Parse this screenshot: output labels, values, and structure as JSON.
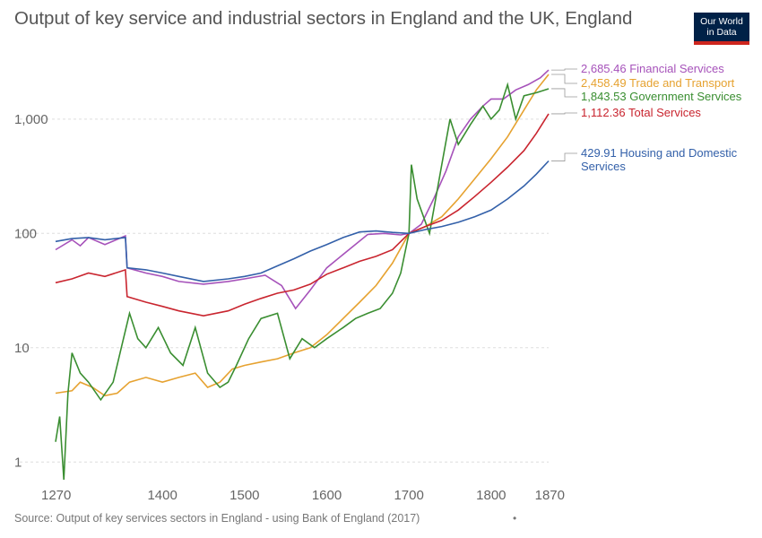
{
  "title": "Output of key service and industrial sectors in England and the UK, England",
  "logo": {
    "line1": "Our World",
    "line2": "in Data",
    "bg": "#002147",
    "accent": "#ce261e"
  },
  "source": "Source: Output of key services sectors in England - using Bank of England (2017)",
  "footer_dot": "•",
  "chart_data": {
    "type": "line",
    "title": "Output of key service and industrial sectors in England and the UK, England",
    "xlabel": "",
    "ylabel": "",
    "yscale": "log",
    "xlim": [
      1270,
      1870
    ],
    "ylim": [
      0.7,
      3000
    ],
    "x_ticks": [
      {
        "value": 1270,
        "label": "1270"
      },
      {
        "value": 1400,
        "label": "1400"
      },
      {
        "value": 1500,
        "label": "1500"
      },
      {
        "value": 1600,
        "label": "1600"
      },
      {
        "value": 1700,
        "label": "1700"
      },
      {
        "value": 1800,
        "label": "1800"
      },
      {
        "value": 1870,
        "label": "1870"
      }
    ],
    "y_ticks": [
      {
        "value": 1,
        "label": "1"
      },
      {
        "value": 10,
        "label": "10"
      },
      {
        "value": 100,
        "label": "100"
      },
      {
        "value": 1000,
        "label": "1,000"
      }
    ],
    "grid": "horizontal-dashed",
    "series": [
      {
        "name": "Financial Services",
        "color": "#a652ba",
        "end_value": 2685.46,
        "end_label": "2,685.46",
        "points": [
          [
            1270,
            72
          ],
          [
            1290,
            88
          ],
          [
            1300,
            78
          ],
          [
            1310,
            92
          ],
          [
            1330,
            80
          ],
          [
            1355,
            95
          ],
          [
            1357,
            50
          ],
          [
            1380,
            45
          ],
          [
            1400,
            42
          ],
          [
            1420,
            38
          ],
          [
            1450,
            36
          ],
          [
            1480,
            38
          ],
          [
            1500,
            40
          ],
          [
            1525,
            43
          ],
          [
            1545,
            35
          ],
          [
            1562,
            22
          ],
          [
            1580,
            32
          ],
          [
            1600,
            50
          ],
          [
            1630,
            75
          ],
          [
            1650,
            98
          ],
          [
            1670,
            100
          ],
          [
            1690,
            97
          ],
          [
            1700,
            100
          ],
          [
            1715,
            120
          ],
          [
            1730,
            200
          ],
          [
            1745,
            350
          ],
          [
            1760,
            700
          ],
          [
            1775,
            1000
          ],
          [
            1790,
            1300
          ],
          [
            1800,
            1500
          ],
          [
            1815,
            1500
          ],
          [
            1830,
            1800
          ],
          [
            1845,
            2000
          ],
          [
            1860,
            2300
          ],
          [
            1870,
            2685
          ]
        ]
      },
      {
        "name": "Trade and Transport",
        "color": "#e6a230",
        "end_value": 2458.49,
        "end_label": "2,458.49",
        "points": [
          [
            1270,
            4
          ],
          [
            1290,
            4.2
          ],
          [
            1300,
            5
          ],
          [
            1315,
            4.5
          ],
          [
            1330,
            3.8
          ],
          [
            1345,
            4
          ],
          [
            1360,
            5
          ],
          [
            1380,
            5.5
          ],
          [
            1400,
            5
          ],
          [
            1420,
            5.5
          ],
          [
            1440,
            6
          ],
          [
            1455,
            4.5
          ],
          [
            1470,
            5
          ],
          [
            1485,
            6.5
          ],
          [
            1500,
            7
          ],
          [
            1520,
            7.5
          ],
          [
            1540,
            8
          ],
          [
            1560,
            9
          ],
          [
            1580,
            10
          ],
          [
            1600,
            13
          ],
          [
            1620,
            18
          ],
          [
            1640,
            25
          ],
          [
            1660,
            35
          ],
          [
            1680,
            55
          ],
          [
            1700,
            100
          ],
          [
            1720,
            115
          ],
          [
            1740,
            140
          ],
          [
            1760,
            200
          ],
          [
            1780,
            300
          ],
          [
            1800,
            450
          ],
          [
            1820,
            700
          ],
          [
            1840,
            1200
          ],
          [
            1855,
            1800
          ],
          [
            1870,
            2458
          ]
        ]
      },
      {
        "name": "Government Services",
        "color": "#3a8e31",
        "end_value": 1843.53,
        "end_label": "1,843.53",
        "points": [
          [
            1270,
            1.5
          ],
          [
            1275,
            2.5
          ],
          [
            1280,
            0.7
          ],
          [
            1285,
            4
          ],
          [
            1290,
            9
          ],
          [
            1300,
            6
          ],
          [
            1310,
            5
          ],
          [
            1325,
            3.5
          ],
          [
            1340,
            5
          ],
          [
            1350,
            10
          ],
          [
            1360,
            20
          ],
          [
            1370,
            12
          ],
          [
            1380,
            10
          ],
          [
            1395,
            15
          ],
          [
            1410,
            9
          ],
          [
            1425,
            7
          ],
          [
            1440,
            15
          ],
          [
            1455,
            6
          ],
          [
            1470,
            4.5
          ],
          [
            1480,
            5
          ],
          [
            1490,
            7
          ],
          [
            1505,
            12
          ],
          [
            1520,
            18
          ],
          [
            1540,
            20
          ],
          [
            1555,
            8
          ],
          [
            1570,
            12
          ],
          [
            1585,
            10
          ],
          [
            1600,
            12
          ],
          [
            1620,
            15
          ],
          [
            1635,
            18
          ],
          [
            1650,
            20
          ],
          [
            1665,
            22
          ],
          [
            1680,
            30
          ],
          [
            1690,
            45
          ],
          [
            1700,
            100
          ],
          [
            1703,
            400
          ],
          [
            1710,
            200
          ],
          [
            1725,
            100
          ],
          [
            1740,
            400
          ],
          [
            1750,
            1000
          ],
          [
            1760,
            600
          ],
          [
            1775,
            900
          ],
          [
            1790,
            1300
          ],
          [
            1800,
            1000
          ],
          [
            1810,
            1200
          ],
          [
            1820,
            2000
          ],
          [
            1830,
            1000
          ],
          [
            1840,
            1600
          ],
          [
            1855,
            1700
          ],
          [
            1870,
            1843
          ]
        ]
      },
      {
        "name": "Total Services",
        "color": "#c9252f",
        "end_value": 1112.36,
        "end_label": "1,112.36",
        "points": [
          [
            1270,
            37
          ],
          [
            1290,
            40
          ],
          [
            1310,
            45
          ],
          [
            1330,
            42
          ],
          [
            1355,
            48
          ],
          [
            1357,
            28
          ],
          [
            1380,
            25
          ],
          [
            1400,
            23
          ],
          [
            1420,
            21
          ],
          [
            1450,
            19
          ],
          [
            1480,
            21
          ],
          [
            1500,
            24
          ],
          [
            1520,
            27
          ],
          [
            1540,
            30
          ],
          [
            1560,
            32
          ],
          [
            1580,
            36
          ],
          [
            1600,
            44
          ],
          [
            1620,
            50
          ],
          [
            1640,
            57
          ],
          [
            1660,
            63
          ],
          [
            1680,
            72
          ],
          [
            1700,
            100
          ],
          [
            1720,
            115
          ],
          [
            1740,
            130
          ],
          [
            1760,
            160
          ],
          [
            1780,
            210
          ],
          [
            1800,
            280
          ],
          [
            1820,
            380
          ],
          [
            1840,
            530
          ],
          [
            1855,
            750
          ],
          [
            1870,
            1112
          ]
        ]
      },
      {
        "name": "Housing and Domestic Services",
        "color": "#3360a9",
        "end_value": 429.91,
        "end_label": "429.91",
        "label_lines": [
          "429.91 Housing and Domestic",
          "Services"
        ],
        "points": [
          [
            1270,
            85
          ],
          [
            1290,
            90
          ],
          [
            1310,
            92
          ],
          [
            1330,
            88
          ],
          [
            1355,
            92
          ],
          [
            1357,
            50
          ],
          [
            1380,
            48
          ],
          [
            1400,
            45
          ],
          [
            1420,
            42
          ],
          [
            1450,
            38
          ],
          [
            1480,
            40
          ],
          [
            1500,
            42
          ],
          [
            1520,
            45
          ],
          [
            1540,
            52
          ],
          [
            1560,
            60
          ],
          [
            1580,
            70
          ],
          [
            1600,
            80
          ],
          [
            1620,
            92
          ],
          [
            1640,
            103
          ],
          [
            1660,
            105
          ],
          [
            1680,
            102
          ],
          [
            1700,
            100
          ],
          [
            1720,
            108
          ],
          [
            1740,
            115
          ],
          [
            1760,
            125
          ],
          [
            1780,
            140
          ],
          [
            1800,
            160
          ],
          [
            1820,
            200
          ],
          [
            1840,
            260
          ],
          [
            1855,
            330
          ],
          [
            1870,
            430
          ]
        ]
      }
    ]
  }
}
